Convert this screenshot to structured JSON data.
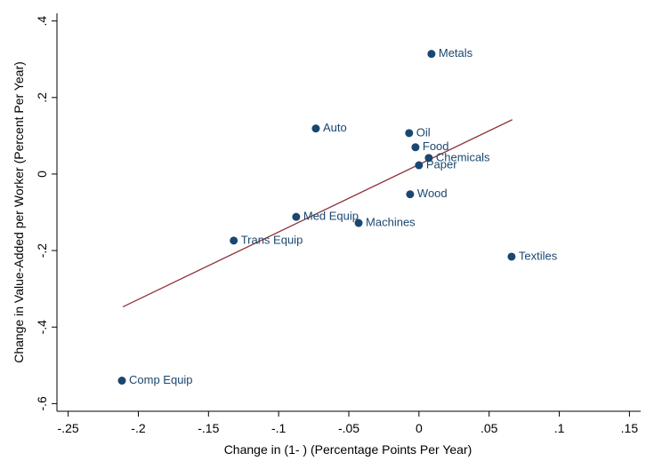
{
  "chart_data": {
    "type": "scatter",
    "x_label": "Change in (1- ) (Percentage Points Per Year)",
    "y_label": "Change in Value-Added per Worker (Percent Per Year)",
    "series": [
      {
        "color": "#1a476f",
        "labels": [
          "Metals",
          "Auto",
          "Oil",
          "Food",
          "Chemicals",
          "Paper",
          "Wood",
          "Med Equip",
          "Machines",
          "Trans Equip",
          "Textiles",
          "Comp Equip"
        ],
        "x": [
          0.0089,
          -0.0735,
          -0.007,
          -0.0025,
          0.007,
          0.0,
          -0.0063,
          -0.0875,
          -0.043,
          -0.132,
          0.066,
          -0.2117
        ],
        "y": [
          0.314,
          0.119,
          0.107,
          0.07,
          0.042,
          0.023,
          -0.053,
          -0.112,
          -0.128,
          -0.174,
          -0.216,
          -0.54
        ]
      }
    ],
    "fit_line": {
      "color": "#90353b",
      "x": [
        -0.211,
        0.0665
      ],
      "y": [
        -0.347,
        0.142
      ]
    },
    "xlim": [
      -0.258,
      0.158
    ],
    "ylim": [
      -0.62,
      0.42
    ],
    "xticks": [
      {
        "value": -0.25,
        "label": "-.25"
      },
      {
        "value": -0.2,
        "label": "-.2"
      },
      {
        "value": -0.15,
        "label": "-.15"
      },
      {
        "value": -0.1,
        "label": "-.1"
      },
      {
        "value": -0.05,
        "label": "-.05"
      },
      0,
      {
        "value": 0.05,
        "label": ".05"
      },
      {
        "value": 0.1,
        "label": ".1"
      },
      {
        "value": 0.15,
        "label": ".15"
      }
    ],
    "yticks": [
      {
        "value": -0.6,
        "label": "-.6"
      },
      {
        "value": -0.4,
        "label": "-.4"
      },
      {
        "value": -0.2,
        "label": "-.2"
      },
      0,
      {
        "value": 0.2,
        "label": ".2"
      },
      {
        "value": 0.4,
        "label": ".4"
      }
    ],
    "grid": false
  }
}
